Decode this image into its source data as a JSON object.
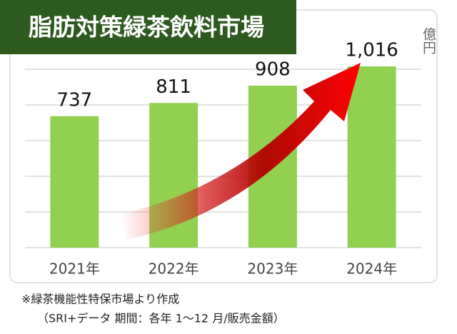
{
  "chart_data": {
    "type": "bar",
    "title": "脂肪対策緑茶飲料市場",
    "unit": "億円",
    "categories": [
      "2021年",
      "2022年",
      "2023年",
      "2024年"
    ],
    "values": [
      737,
      811,
      908,
      1016
    ],
    "value_labels": [
      "737",
      "811",
      "908",
      "1,016"
    ],
    "color": "#92d050",
    "ylim": [
      0,
      1200
    ],
    "yticks": [
      0,
      200,
      400,
      600,
      800,
      1000
    ],
    "grid": true,
    "notes": [
      "※緑茶機能性特保市場より作成",
      "（SRI+データ 期間：各年 1～12 月/販売金額）"
    ]
  }
}
